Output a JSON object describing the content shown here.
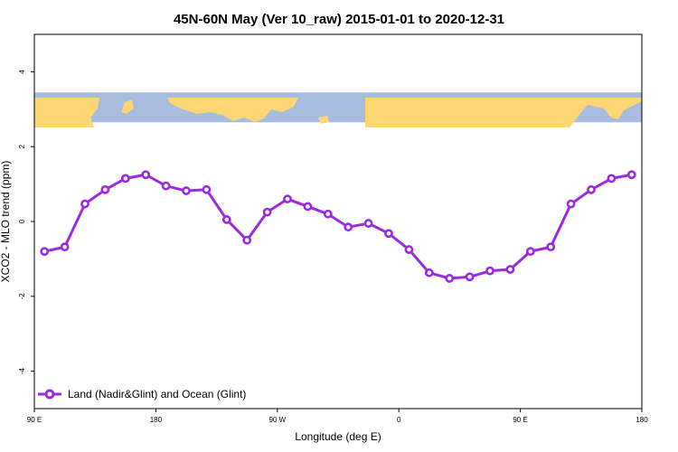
{
  "chart_data": {
    "type": "line",
    "title": "45N-60N May (Ver 10_raw)   2015-01-01 to 2020-12-31",
    "xlabel": "Longitude (deg E)",
    "ylabel": "XCO2 - MLO trend (ppm)",
    "xlim": [
      90,
      450
    ],
    "ylim": [
      -5,
      5
    ],
    "x_ticks": [
      {
        "value": 90,
        "label": "90 E"
      },
      {
        "value": 162,
        "label": "180"
      },
      {
        "value": 234,
        "label": "90 W"
      },
      {
        "value": 306,
        "label": "0"
      },
      {
        "value": 378,
        "label": "90 E"
      },
      {
        "value": 450,
        "label": "180"
      }
    ],
    "y_ticks": [
      {
        "value": -4,
        "label": "-4"
      },
      {
        "value": -2,
        "label": "-2"
      },
      {
        "value": 0,
        "label": "0"
      },
      {
        "value": 2,
        "label": "2"
      },
      {
        "value": 4,
        "label": "4"
      }
    ],
    "map_strip": {
      "ymin": 2.65,
      "ymax": 3.45,
      "land_color": "#fcd773",
      "ocean_color": "#a7bcde"
    },
    "series": [
      {
        "name": "Land (Nadir&Glint) and Ocean (Glint)",
        "color": "#9a2be2",
        "x": [
          96,
          108,
          120,
          132,
          144,
          156,
          168,
          180,
          192,
          204,
          216,
          228,
          240,
          252,
          264,
          276,
          288,
          300,
          312,
          324,
          336,
          348,
          360,
          372,
          384,
          396,
          408,
          420,
          432,
          444
        ],
        "values": [
          -0.8,
          -0.68,
          0.47,
          0.85,
          1.15,
          1.25,
          0.95,
          0.82,
          0.85,
          0.05,
          -0.5,
          0.25,
          0.6,
          0.4,
          0.2,
          -0.15,
          -0.05,
          -0.32,
          -0.75,
          -1.37,
          -1.52,
          -1.48,
          -1.32,
          -1.28,
          -0.8,
          -0.68,
          0.47,
          0.85,
          1.15,
          1.25
        ]
      }
    ],
    "legend_position": "bottom-left",
    "grid": false
  }
}
